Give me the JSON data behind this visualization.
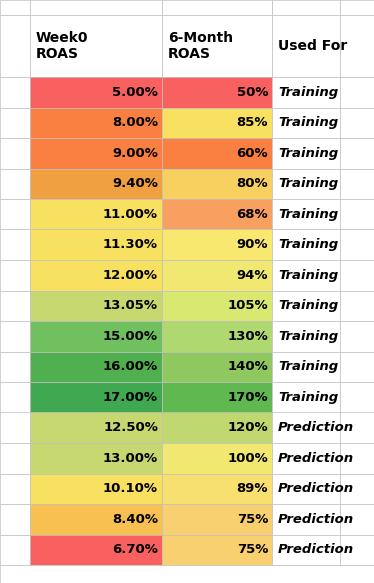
{
  "week0_roas": [
    "5.00%",
    "8.00%",
    "9.00%",
    "9.40%",
    "11.00%",
    "11.30%",
    "12.00%",
    "13.05%",
    "15.00%",
    "16.00%",
    "17.00%",
    "12.50%",
    "13.00%",
    "10.10%",
    "8.40%",
    "6.70%"
  ],
  "month6_roas": [
    "50%",
    "85%",
    "60%",
    "80%",
    "68%",
    "90%",
    "94%",
    "105%",
    "130%",
    "140%",
    "170%",
    "120%",
    "100%",
    "89%",
    "75%",
    "75%"
  ],
  "used_for": [
    "Training",
    "Training",
    "Training",
    "Training",
    "Training",
    "Training",
    "Training",
    "Training",
    "Training",
    "Training",
    "Training",
    "Prediction",
    "Prediction",
    "Prediction",
    "Prediction",
    "Prediction"
  ],
  "col1_colors": [
    "#F96060",
    "#F98040",
    "#F98040",
    "#F0A040",
    "#F8E060",
    "#F8E060",
    "#F8E060",
    "#C8D870",
    "#70C060",
    "#50B050",
    "#40A850",
    "#C8D870",
    "#C8D870",
    "#F8E060",
    "#F8C050",
    "#F96060"
  ],
  "col2_colors": [
    "#F96060",
    "#F8E060",
    "#F98040",
    "#F8D060",
    "#F8A060",
    "#F8E870",
    "#F0E870",
    "#D8E870",
    "#B0D870",
    "#90C860",
    "#60B850",
    "#C0D870",
    "#F0E870",
    "#F8E070",
    "#F8D070",
    "#F8D070"
  ],
  "header1": "Week0\nROAS",
  "header2": "6-Month\nROAS",
  "header3": "Used For",
  "fig_width": 3.74,
  "fig_height": 5.83,
  "background": "#ffffff",
  "grid_color": "#c0c0c0",
  "header_fontsize": 10,
  "cell_fontsize": 9.5
}
